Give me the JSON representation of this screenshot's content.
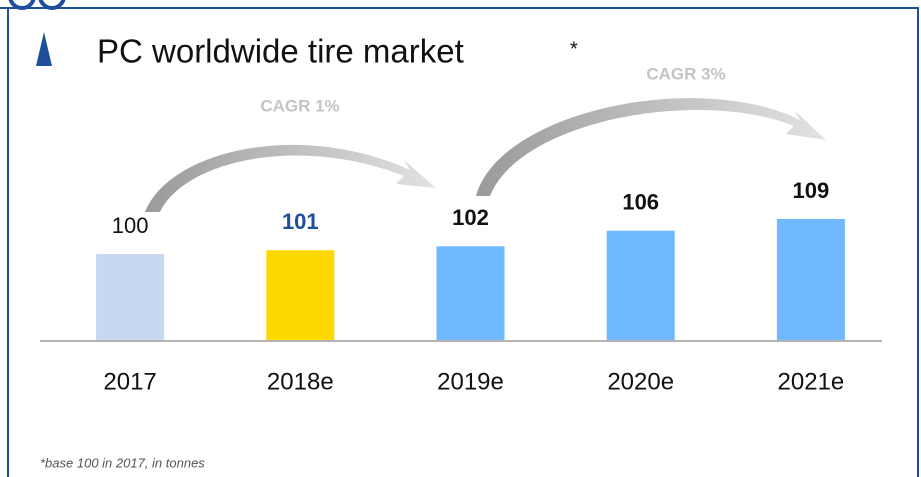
{
  "chart_data": {
    "type": "bar",
    "title": "PC worldwide tire market",
    "title_note": "*",
    "categories": [
      "2017",
      "2018e",
      "2019e",
      "2020e",
      "2021e"
    ],
    "values": [
      100,
      101,
      102,
      106,
      109
    ],
    "colors": [
      "#c6d9f1",
      "#ffd800",
      "#70b8ff",
      "#70b8ff",
      "#70b8ff"
    ],
    "value_label_colors": [
      "#111111",
      "#1f4e9a",
      "#111111",
      "#111111",
      "#111111"
    ],
    "ylim": [
      78,
      130
    ],
    "annotations": [
      "CAGR 1%",
      "CAGR 3%"
    ],
    "footnote": "*base 100 in 2017, in tonnes"
  }
}
